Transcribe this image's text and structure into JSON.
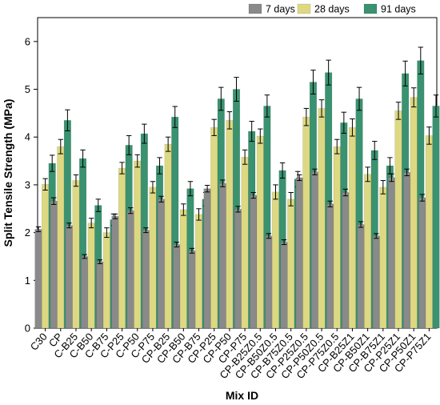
{
  "chart_data": {
    "type": "bar",
    "title": "",
    "xlabel": "Mix ID",
    "ylabel": "Split Tensile Strength (MPa)",
    "ylim": [
      0,
      6.5
    ],
    "yticks": [
      0,
      1,
      2,
      3,
      4,
      5,
      6
    ],
    "grid": false,
    "legend_position": "top-right",
    "error_bars": true,
    "categories": [
      "C30",
      "CP",
      "C-B25",
      "C-B50",
      "C-B75",
      "C-P25",
      "C-P50",
      "C-P75",
      "CP-B25",
      "CP-B50",
      "CP-B75",
      "CP-P25",
      "CP-P50",
      "CP-P75",
      "CP-B25Z0.5",
      "CP-B50Z0.5",
      "CP-B75Z0.5",
      "CP-P25Z0.5",
      "CP-P50Z0.5",
      "CP-P75Z0.5",
      "CP-B25Z1",
      "CP-B50Z1",
      "CP-B75Z1",
      "CP-P25Z1",
      "CP-P50Z1",
      "CP-P75Z1"
    ],
    "series": [
      {
        "name": "7 days",
        "color": "#8a8a8a",
        "values": [
          2.07,
          2.66,
          2.15,
          1.5,
          1.39,
          2.34,
          2.46,
          2.05,
          2.7,
          1.75,
          1.62,
          2.92,
          3.03,
          2.49,
          2.78,
          1.93,
          1.8,
          3.15,
          3.27,
          2.6,
          2.84,
          2.17,
          1.93,
          3.15,
          3.26,
          2.73
        ],
        "errors": [
          0.05,
          0.07,
          0.05,
          0.04,
          0.04,
          0.05,
          0.06,
          0.05,
          0.06,
          0.05,
          0.05,
          0.07,
          0.07,
          0.06,
          0.06,
          0.05,
          0.05,
          0.06,
          0.06,
          0.06,
          0.07,
          0.06,
          0.05,
          0.08,
          0.07,
          0.07
        ]
      },
      {
        "name": "28 days",
        "color": "#ddd882",
        "values": [
          3.01,
          3.8,
          3.09,
          2.2,
          2.0,
          3.35,
          3.5,
          2.95,
          3.85,
          2.48,
          2.38,
          4.2,
          4.35,
          3.58,
          4.02,
          2.85,
          2.7,
          4.42,
          4.6,
          3.8,
          4.2,
          3.22,
          2.95,
          4.55,
          4.83,
          4.03
        ],
        "errors": [
          0.12,
          0.15,
          0.12,
          0.1,
          0.1,
          0.12,
          0.13,
          0.12,
          0.15,
          0.12,
          0.12,
          0.17,
          0.18,
          0.15,
          0.15,
          0.15,
          0.14,
          0.18,
          0.18,
          0.15,
          0.18,
          0.15,
          0.14,
          0.18,
          0.2,
          0.18
        ]
      },
      {
        "name": "91 days",
        "color": "#3a9270",
        "values": [
          3.45,
          4.35,
          3.55,
          2.57,
          2.27,
          3.83,
          4.07,
          3.4,
          4.42,
          2.92,
          2.7,
          4.8,
          5.0,
          4.12,
          4.65,
          3.3,
          3.12,
          5.15,
          5.35,
          4.3,
          4.8,
          3.72,
          3.4,
          5.33,
          5.6,
          4.65
        ],
        "errors": [
          0.17,
          0.22,
          0.18,
          0.13,
          0.12,
          0.2,
          0.2,
          0.17,
          0.22,
          0.15,
          0.14,
          0.24,
          0.25,
          0.21,
          0.23,
          0.16,
          0.16,
          0.25,
          0.26,
          0.22,
          0.24,
          0.19,
          0.17,
          0.26,
          0.28,
          0.23
        ]
      }
    ]
  }
}
